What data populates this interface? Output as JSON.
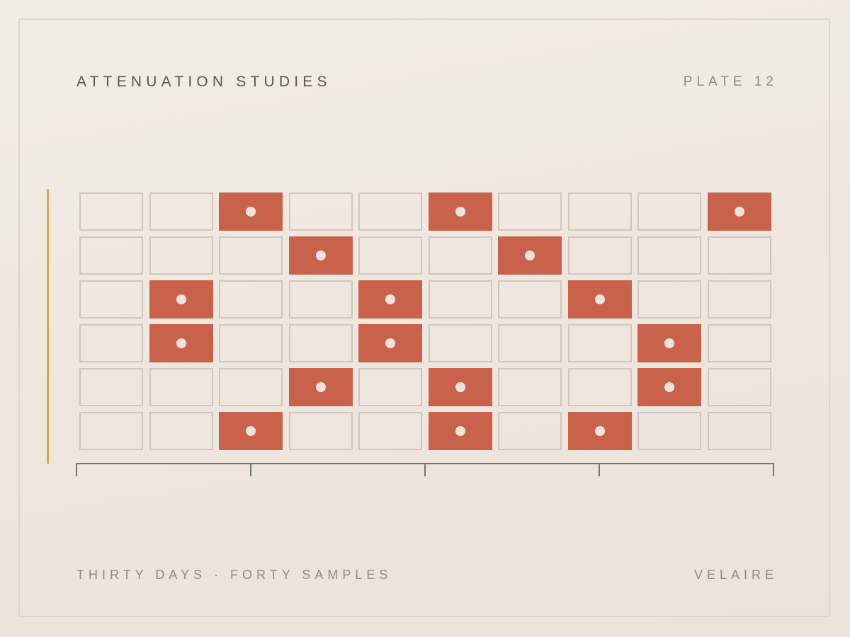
{
  "header": {
    "title": "ATTENUATION STUDIES",
    "plate": "PLATE 12"
  },
  "footer": {
    "subtitle": "THIRTY DAYS · FORTY SAMPLES",
    "maker": "VELAIRE"
  },
  "colors": {
    "filled_cell": "#c8624a",
    "empty_cell_border": "#cfc6bd",
    "accent_bar": "#d9a35f",
    "axis": "#6b7a70"
  },
  "grid": {
    "rows": 6,
    "columns": 10,
    "filled": [
      [
        0,
        0,
        1,
        0,
        0,
        1,
        0,
        0,
        0,
        1
      ],
      [
        0,
        0,
        0,
        1,
        0,
        0,
        1,
        0,
        0,
        0
      ],
      [
        0,
        1,
        0,
        0,
        1,
        0,
        0,
        1,
        0,
        0
      ],
      [
        0,
        1,
        0,
        0,
        1,
        0,
        0,
        0,
        1,
        0
      ],
      [
        0,
        0,
        0,
        1,
        0,
        1,
        0,
        0,
        1,
        0
      ],
      [
        0,
        0,
        1,
        0,
        0,
        1,
        0,
        1,
        0,
        0
      ]
    ]
  },
  "axis": {
    "tick_count": 5
  }
}
